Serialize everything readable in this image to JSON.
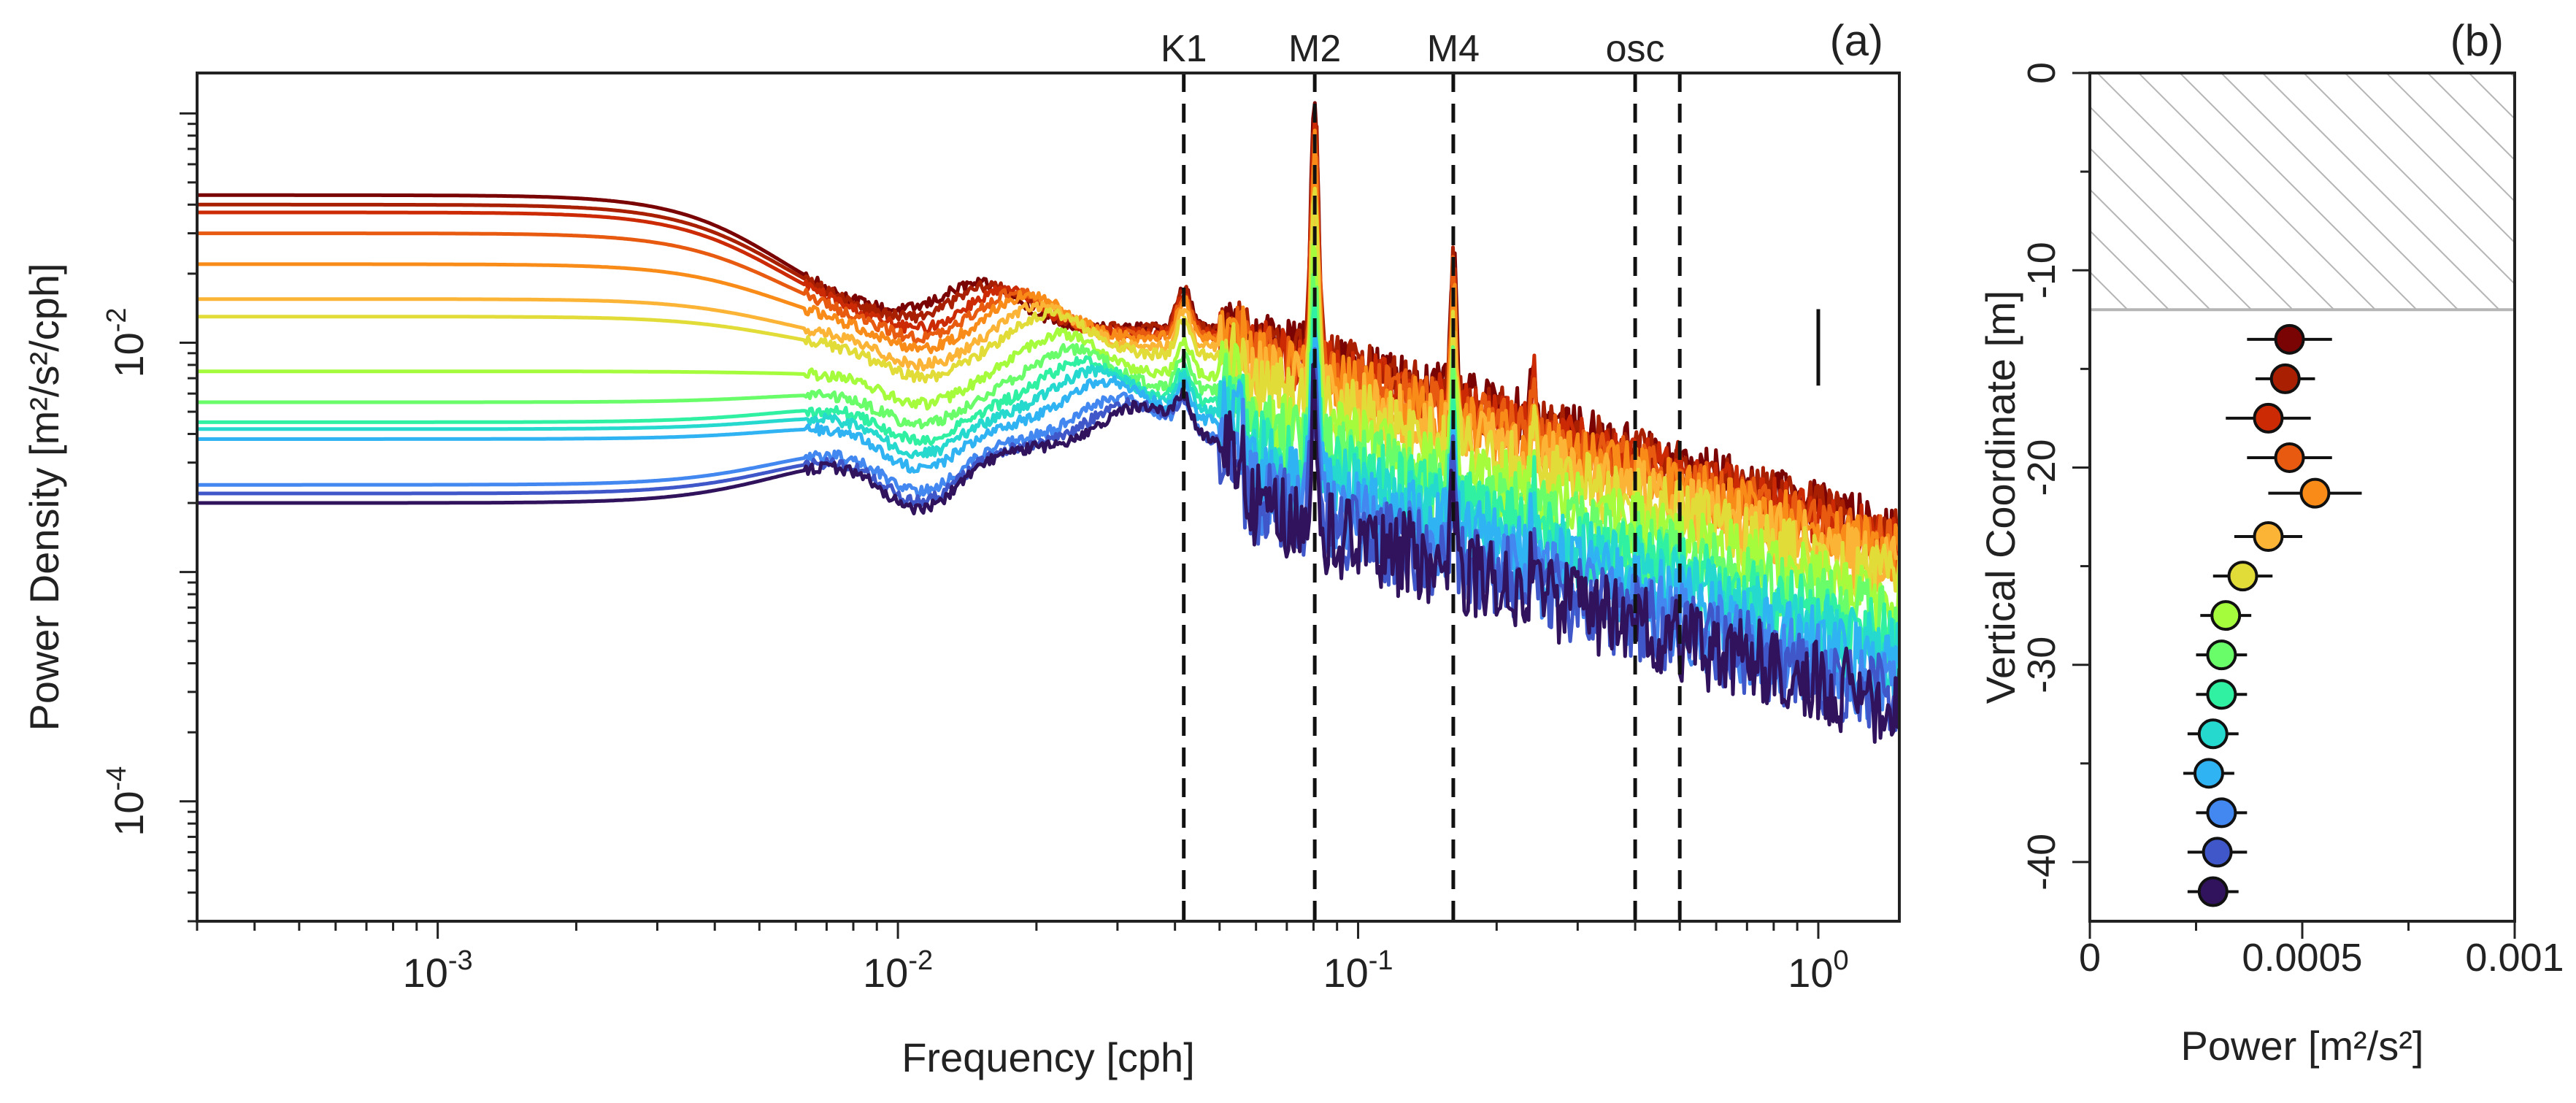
{
  "chart_data": [
    {
      "panel": "(a)",
      "type": "line",
      "xscale": "log",
      "yscale": "log",
      "xlim": [
        0.0003,
        1.5
      ],
      "ylim": [
        3e-05,
        0.15
      ],
      "xlabel": "Frequency [cph]",
      "ylabel": "Power Density [m²/s²/cph]",
      "xticks": [
        {
          "value": 0.001,
          "base": "10",
          "exp": "-3"
        },
        {
          "value": 0.01,
          "base": "10",
          "exp": "-2"
        },
        {
          "value": 0.1,
          "base": "10",
          "exp": "-1"
        },
        {
          "value": 1,
          "base": "10",
          "exp": "0"
        }
      ],
      "yticks": [
        {
          "value": 0.01,
          "base": "10",
          "exp": "-2"
        },
        {
          "value": 0.0001,
          "base": "10",
          "exp": "-4"
        }
      ],
      "reference_lines": [
        {
          "label": "K1",
          "x": 0.0418
        },
        {
          "label": "M2",
          "x": 0.0805
        },
        {
          "label": "M4",
          "x": 0.161
        },
        {
          "label": "osc",
          "x": 0.4
        },
        {
          "label": "",
          "x": 0.5
        }
      ],
      "error_bar": {
        "x": 1.0,
        "y_low": 0.0065,
        "y_high": 0.014
      },
      "series": [
        {
          "depth": -13.5,
          "color": "#7a0403",
          "plateau": 0.044,
          "bump": 0.0115,
          "m2": 0.11
        },
        {
          "depth": -15.5,
          "color": "#a81f02",
          "plateau": 0.04,
          "bump": 0.0115,
          "m2": 0.1
        },
        {
          "depth": -17.5,
          "color": "#cb2a04",
          "plateau": 0.037,
          "bump": 0.011,
          "m2": 0.09
        },
        {
          "depth": -19.5,
          "color": "#e85a10",
          "plateau": 0.03,
          "bump": 0.0108,
          "m2": 0.08
        },
        {
          "depth": -21.5,
          "color": "#f98c18",
          "plateau": 0.022,
          "bump": 0.0105,
          "m2": 0.07
        },
        {
          "depth": -23.5,
          "color": "#fcb437",
          "plateau": 0.0155,
          "bump": 0.0095,
          "m2": 0.045
        },
        {
          "depth": -25.5,
          "color": "#e2dc38",
          "plateau": 0.013,
          "bump": 0.0088,
          "m2": 0.035
        },
        {
          "depth": -27.5,
          "color": "#a5fc3c",
          "plateau": 0.0075,
          "bump": 0.0072,
          "m2": 0.025
        },
        {
          "depth": -29.5,
          "color": "#6afd6a",
          "plateau": 0.0055,
          "bump": 0.0062,
          "m2": 0.02
        },
        {
          "depth": -31.5,
          "color": "#2ff1a1",
          "plateau": 0.0045,
          "bump": 0.0055,
          "m2": 0.014
        },
        {
          "depth": -33.5,
          "color": "#25d9cf",
          "plateau": 0.0042,
          "bump": 0.005,
          "m2": 0.011
        },
        {
          "depth": -35.5,
          "color": "#2fb3f2",
          "plateau": 0.0038,
          "bump": 0.0045,
          "m2": 0.009
        },
        {
          "depth": -37.5,
          "color": "#4388f0",
          "plateau": 0.0024,
          "bump": 0.0038,
          "m2": 0.0075
        },
        {
          "depth": -39.5,
          "color": "#3f57c9",
          "plateau": 0.0022,
          "bump": 0.0036,
          "m2": 0.0065
        },
        {
          "depth": -41.5,
          "color": "#30135c",
          "plateau": 0.002,
          "bump": 0.0035,
          "m2": 0.006
        }
      ]
    },
    {
      "panel": "(b)",
      "type": "scatter",
      "xlabel": "Power [m²/s²]",
      "ylabel": "Vertical Coordinate [m]",
      "xlim": [
        0,
        0.001
      ],
      "ylim": [
        -43,
        0
      ],
      "xticks": [
        {
          "value": 0,
          "label": "0"
        },
        {
          "value": 0.0005,
          "label": "0.0005"
        },
        {
          "value": 0.001,
          "label": "0.001"
        }
      ],
      "yticks": [
        {
          "value": 0,
          "label": "0"
        },
        {
          "value": -10,
          "label": "-10"
        },
        {
          "value": -20,
          "label": "-20"
        },
        {
          "value": -30,
          "label": "-30"
        },
        {
          "value": -40,
          "label": "-40"
        }
      ],
      "hatched_region": {
        "y_top": 0,
        "y_bottom": -12
      },
      "points": [
        {
          "y": -13.5,
          "x": 0.00047,
          "xerr": 0.0001,
          "color": "#7a0403"
        },
        {
          "y": -15.5,
          "x": 0.00046,
          "xerr": 7e-05,
          "color": "#a81f02"
        },
        {
          "y": -17.5,
          "x": 0.00042,
          "xerr": 0.0001,
          "color": "#cb2a04"
        },
        {
          "y": -19.5,
          "x": 0.00047,
          "xerr": 0.0001,
          "color": "#e85a10"
        },
        {
          "y": -21.3,
          "x": 0.00053,
          "xerr": 0.00011,
          "color": "#f98c18"
        },
        {
          "y": -23.5,
          "x": 0.00042,
          "xerr": 8e-05,
          "color": "#fcb437"
        },
        {
          "y": -25.5,
          "x": 0.00036,
          "xerr": 7e-05,
          "color": "#e2dc38"
        },
        {
          "y": -27.5,
          "x": 0.00032,
          "xerr": 6e-05,
          "color": "#a5fc3c"
        },
        {
          "y": -29.5,
          "x": 0.00031,
          "xerr": 6e-05,
          "color": "#6afd6a"
        },
        {
          "y": -31.5,
          "x": 0.00031,
          "xerr": 6e-05,
          "color": "#2ff1a1"
        },
        {
          "y": -33.5,
          "x": 0.00029,
          "xerr": 6e-05,
          "color": "#25d9cf"
        },
        {
          "y": -35.5,
          "x": 0.00028,
          "xerr": 6e-05,
          "color": "#2fb3f2"
        },
        {
          "y": -37.5,
          "x": 0.00031,
          "xerr": 6e-05,
          "color": "#4388f0"
        },
        {
          "y": -39.5,
          "x": 0.0003,
          "xerr": 7e-05,
          "color": "#3f57c9"
        },
        {
          "y": -41.5,
          "x": 0.00029,
          "xerr": 6e-05,
          "color": "#30135c"
        }
      ]
    }
  ]
}
